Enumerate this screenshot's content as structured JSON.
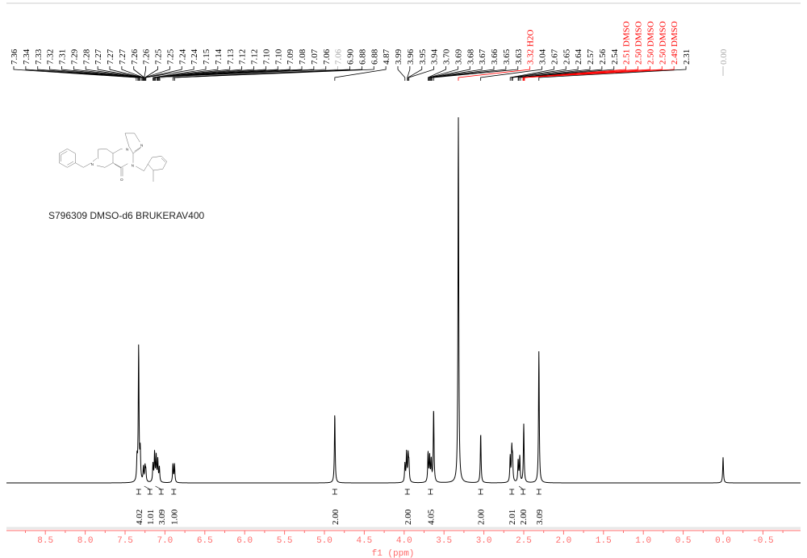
{
  "chart_data": {
    "type": "line",
    "xlabel": "f1 (ppm)",
    "xlim": [
      8.85,
      -0.95
    ],
    "x_reversed": true,
    "x_ticks": [
      "8.5",
      "8.0",
      "7.5",
      "7.0",
      "6.5",
      "6.0",
      "5.5",
      "5.0",
      "4.5",
      "4.0",
      "3.5",
      "3.0",
      "2.5",
      "2.0",
      "1.5",
      "1.0",
      "0.5",
      "0.0",
      "-0.5"
    ],
    "x_tick_values": [
      8.5,
      8.0,
      7.5,
      7.0,
      6.5,
      6.0,
      5.5,
      5.0,
      4.5,
      4.0,
      3.5,
      3.0,
      2.5,
      2.0,
      1.5,
      1.0,
      0.5,
      0.0,
      -0.5
    ],
    "sample_label": "S796309 DMSO-d6 BRUKERAV400",
    "peaks": [
      {
        "ppm": 7.35,
        "intensity": 6
      },
      {
        "ppm": 7.33,
        "intensity": 37
      },
      {
        "ppm": 7.31,
        "intensity": 8
      },
      {
        "ppm": 7.27,
        "intensity": 4
      },
      {
        "ppm": 7.25,
        "intensity": 4
      },
      {
        "ppm": 7.24,
        "intensity": 3
      },
      {
        "ppm": 7.15,
        "intensity": 5
      },
      {
        "ppm": 7.13,
        "intensity": 8
      },
      {
        "ppm": 7.11,
        "intensity": 7
      },
      {
        "ppm": 7.09,
        "intensity": 6
      },
      {
        "ppm": 7.07,
        "intensity": 4
      },
      {
        "ppm": 6.9,
        "intensity": 5
      },
      {
        "ppm": 6.88,
        "intensity": 5
      },
      {
        "ppm": 4.87,
        "intensity": 19
      },
      {
        "ppm": 3.99,
        "intensity": 5
      },
      {
        "ppm": 3.97,
        "intensity": 8
      },
      {
        "ppm": 3.95,
        "intensity": 7
      },
      {
        "ppm": 3.94,
        "intensity": 5
      },
      {
        "ppm": 3.7,
        "intensity": 8
      },
      {
        "ppm": 3.68,
        "intensity": 7
      },
      {
        "ppm": 3.66,
        "intensity": 6
      },
      {
        "ppm": 3.63,
        "intensity": 20
      },
      {
        "ppm": 3.32,
        "intensity": 100
      },
      {
        "ppm": 3.04,
        "intensity": 13.5
      },
      {
        "ppm": 2.67,
        "intensity": 7
      },
      {
        "ppm": 2.65,
        "intensity": 9
      },
      {
        "ppm": 2.64,
        "intensity": 6
      },
      {
        "ppm": 2.57,
        "intensity": 6
      },
      {
        "ppm": 2.55,
        "intensity": 7
      },
      {
        "ppm": 2.5,
        "intensity": 16
      },
      {
        "ppm": 2.31,
        "intensity": 36
      },
      {
        "ppm": 0.0,
        "intensity": 7
      }
    ],
    "peak_labels": [
      {
        "text": "7.36",
        "ppm": 7.36,
        "color": "#000000"
      },
      {
        "text": "7.34",
        "ppm": 7.34,
        "color": "#000000"
      },
      {
        "text": "7.33",
        "ppm": 7.33,
        "color": "#000000"
      },
      {
        "text": "7.32",
        "ppm": 7.32,
        "color": "#000000"
      },
      {
        "text": "7.31",
        "ppm": 7.31,
        "color": "#000000"
      },
      {
        "text": "7.29",
        "ppm": 7.29,
        "color": "#000000"
      },
      {
        "text": "7.28",
        "ppm": 7.28,
        "color": "#000000"
      },
      {
        "text": "7.27",
        "ppm": 7.27,
        "color": "#000000"
      },
      {
        "text": "7.27",
        "ppm": 7.27,
        "color": "#000000"
      },
      {
        "text": "7.27",
        "ppm": 7.27,
        "color": "#000000"
      },
      {
        "text": "7.26",
        "ppm": 7.26,
        "color": "#000000"
      },
      {
        "text": "7.26",
        "ppm": 7.26,
        "color": "#000000"
      },
      {
        "text": "7.25",
        "ppm": 7.25,
        "color": "#000000"
      },
      {
        "text": "7.25",
        "ppm": 7.25,
        "color": "#000000"
      },
      {
        "text": "7.24",
        "ppm": 7.24,
        "color": "#000000"
      },
      {
        "text": "7.24",
        "ppm": 7.24,
        "color": "#000000"
      },
      {
        "text": "7.15",
        "ppm": 7.15,
        "color": "#000000"
      },
      {
        "text": "7.14",
        "ppm": 7.14,
        "color": "#000000"
      },
      {
        "text": "7.13",
        "ppm": 7.13,
        "color": "#000000"
      },
      {
        "text": "7.12",
        "ppm": 7.12,
        "color": "#000000"
      },
      {
        "text": "7.12",
        "ppm": 7.12,
        "color": "#000000"
      },
      {
        "text": "7.10",
        "ppm": 7.1,
        "color": "#000000"
      },
      {
        "text": "7.10",
        "ppm": 7.1,
        "color": "#000000"
      },
      {
        "text": "7.09",
        "ppm": 7.09,
        "color": "#000000"
      },
      {
        "text": "7.08",
        "ppm": 7.08,
        "color": "#000000"
      },
      {
        "text": "7.07",
        "ppm": 7.07,
        "color": "#000000"
      },
      {
        "text": "7.06",
        "ppm": 7.06,
        "color": "#000000"
      },
      {
        "text": "7.06",
        "ppm": 7.06,
        "color": "#aaaaaa"
      },
      {
        "text": "6.90",
        "ppm": 6.9,
        "color": "#000000"
      },
      {
        "text": "6.88",
        "ppm": 6.88,
        "color": "#000000"
      },
      {
        "text": "6.88",
        "ppm": 6.88,
        "color": "#000000"
      },
      {
        "text": "4.87",
        "ppm": 4.87,
        "color": "#000000"
      },
      {
        "text": "3.99",
        "ppm": 3.99,
        "color": "#000000"
      },
      {
        "text": "3.96",
        "ppm": 3.96,
        "color": "#000000"
      },
      {
        "text": "3.95",
        "ppm": 3.95,
        "color": "#000000"
      },
      {
        "text": "3.94",
        "ppm": 3.94,
        "color": "#000000"
      },
      {
        "text": "3.70",
        "ppm": 3.7,
        "color": "#000000"
      },
      {
        "text": "3.69",
        "ppm": 3.69,
        "color": "#000000"
      },
      {
        "text": "3.68",
        "ppm": 3.68,
        "color": "#000000"
      },
      {
        "text": "3.67",
        "ppm": 3.67,
        "color": "#000000"
      },
      {
        "text": "3.66",
        "ppm": 3.66,
        "color": "#000000"
      },
      {
        "text": "3.65",
        "ppm": 3.65,
        "color": "#000000"
      },
      {
        "text": "3.63",
        "ppm": 3.63,
        "color": "#000000"
      },
      {
        "text": "3.32 H2O",
        "ppm": 3.32,
        "color": "#ff0000"
      },
      {
        "text": "3.04",
        "ppm": 3.04,
        "color": "#000000"
      },
      {
        "text": "2.67",
        "ppm": 2.67,
        "color": "#000000"
      },
      {
        "text": "2.65",
        "ppm": 2.65,
        "color": "#000000"
      },
      {
        "text": "2.64",
        "ppm": 2.64,
        "color": "#000000"
      },
      {
        "text": "2.57",
        "ppm": 2.57,
        "color": "#000000"
      },
      {
        "text": "2.56",
        "ppm": 2.56,
        "color": "#000000"
      },
      {
        "text": "2.54",
        "ppm": 2.54,
        "color": "#000000"
      },
      {
        "text": "2.51 DMSO",
        "ppm": 2.51,
        "color": "#ff0000"
      },
      {
        "text": "2.50 DMSO",
        "ppm": 2.5,
        "color": "#ff0000"
      },
      {
        "text": "2.50 DMSO",
        "ppm": 2.5,
        "color": "#ff0000"
      },
      {
        "text": "2.50 DMSO",
        "ppm": 2.5,
        "color": "#ff0000"
      },
      {
        "text": "2.49 DMSO",
        "ppm": 2.49,
        "color": "#ff0000"
      },
      {
        "text": "2.31",
        "ppm": 2.31,
        "color": "#000000"
      }
    ],
    "reference_label": {
      "text": "0.00",
      "ppm": 0.0,
      "color": "#aaaaaa"
    },
    "integrals": [
      {
        "text": "4.02",
        "ppm": 7.33
      },
      {
        "text": "1.01",
        "ppm": 7.26
      },
      {
        "text": "3.09",
        "ppm": 7.12
      },
      {
        "text": "1.00",
        "ppm": 6.89
      },
      {
        "text": "2.00",
        "ppm": 4.87
      },
      {
        "text": "2.00",
        "ppm": 3.96
      },
      {
        "text": "4.05",
        "ppm": 3.67
      },
      {
        "text": "2.00",
        "ppm": 3.04
      },
      {
        "text": "2.01",
        "ppm": 2.65
      },
      {
        "text": "2.00",
        "ppm": 2.56
      },
      {
        "text": "3.09",
        "ppm": 2.31
      }
    ],
    "colors": {
      "spectrum": "#000000",
      "axis": "#ff6b6b",
      "solvent": "#ff0000"
    }
  }
}
